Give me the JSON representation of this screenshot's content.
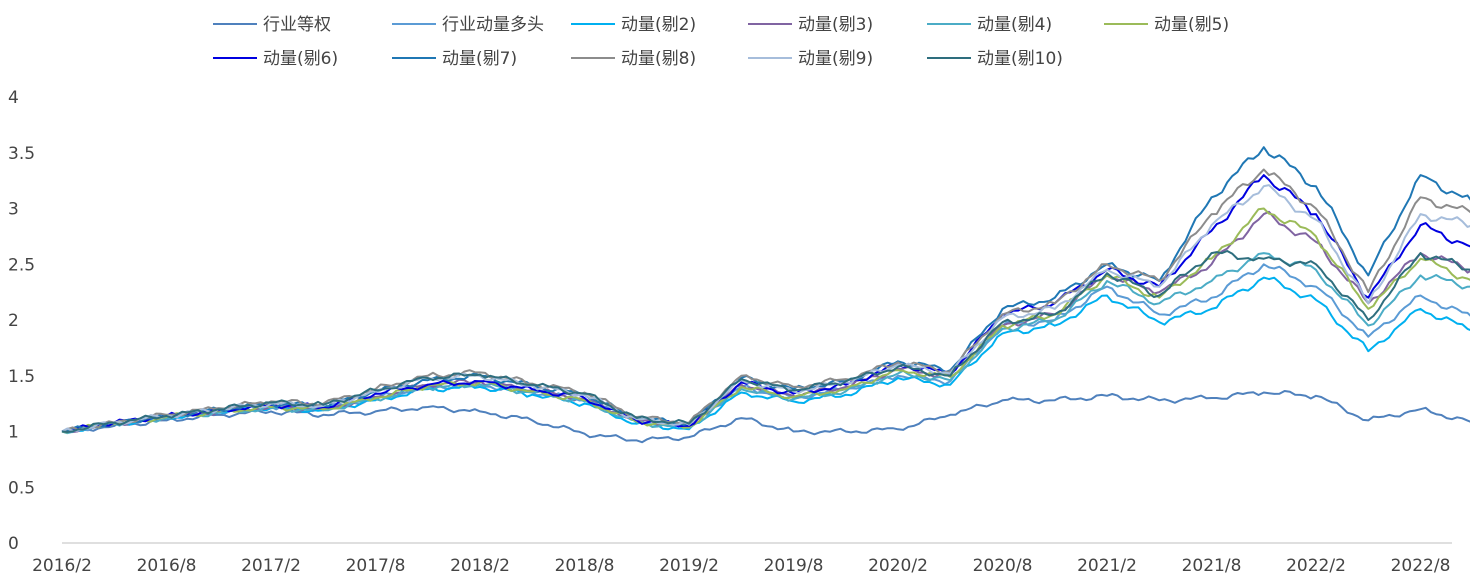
{
  "chart_data": {
    "type": "line",
    "title": "",
    "xlabel": "",
    "ylabel": "",
    "ylim": [
      0,
      4
    ],
    "yticks": [
      "0",
      "0.5",
      "1",
      "1.5",
      "2",
      "2.5",
      "3",
      "3.5",
      "4"
    ],
    "xticks": [
      "2016/2",
      "2016/8",
      "2017/2",
      "2017/8",
      "2018/2",
      "2018/8",
      "2019/2",
      "2019/8",
      "2020/2",
      "2020/8",
      "2021/2",
      "2021/8",
      "2022/2",
      "2022/8"
    ],
    "legend_position": "top",
    "grid": false,
    "x": [
      "2016/2",
      "2016/5",
      "2016/8",
      "2016/11",
      "2017/2",
      "2017/5",
      "2017/8",
      "2017/11",
      "2018/2",
      "2018/5",
      "2018/8",
      "2018/11",
      "2019/2",
      "2019/5",
      "2019/8",
      "2019/11",
      "2020/2",
      "2020/5",
      "2020/8",
      "2020/11",
      "2021/2",
      "2021/5",
      "2021/8",
      "2021/11",
      "2022/2",
      "2022/5",
      "2022/8",
      "2022/11"
    ],
    "series": [
      {
        "name": "行业等权",
        "color": "#4f81bd",
        "values": [
          1.0,
          1.05,
          1.1,
          1.15,
          1.18,
          1.15,
          1.18,
          1.22,
          1.18,
          1.1,
          0.98,
          0.92,
          0.95,
          1.12,
          1.0,
          1.0,
          1.02,
          1.15,
          1.28,
          1.28,
          1.32,
          1.28,
          1.3,
          1.35,
          1.32,
          1.1,
          1.2,
          1.08
        ]
      },
      {
        "name": "行业动量多头",
        "color": "#5b9bd5",
        "values": [
          1.0,
          1.07,
          1.13,
          1.18,
          1.22,
          1.2,
          1.3,
          1.4,
          1.42,
          1.35,
          1.28,
          1.1,
          1.05,
          1.4,
          1.3,
          1.38,
          1.5,
          1.45,
          1.95,
          2.0,
          2.3,
          2.05,
          2.2,
          2.5,
          2.3,
          1.85,
          2.22,
          2.02
        ]
      },
      {
        "name": "动量(剔2)",
        "color": "#00b0f0",
        "values": [
          1.0,
          1.07,
          1.12,
          1.17,
          1.21,
          1.19,
          1.28,
          1.38,
          1.4,
          1.33,
          1.25,
          1.07,
          1.02,
          1.35,
          1.27,
          1.33,
          1.48,
          1.42,
          1.88,
          1.95,
          2.22,
          1.98,
          2.1,
          2.38,
          2.18,
          1.72,
          2.1,
          1.9
        ]
      },
      {
        "name": "动量(剔3)",
        "color": "#8064a2",
        "values": [
          1.0,
          1.07,
          1.13,
          1.18,
          1.22,
          1.2,
          1.31,
          1.42,
          1.45,
          1.37,
          1.29,
          1.1,
          1.05,
          1.42,
          1.32,
          1.4,
          1.56,
          1.5,
          1.95,
          2.05,
          2.4,
          2.25,
          2.5,
          2.95,
          2.7,
          2.15,
          2.6,
          2.45
        ]
      },
      {
        "name": "动量(剔4)",
        "color": "#4bacc6",
        "values": [
          1.0,
          1.07,
          1.12,
          1.17,
          1.21,
          1.19,
          1.29,
          1.39,
          1.42,
          1.35,
          1.27,
          1.08,
          1.03,
          1.38,
          1.29,
          1.36,
          1.52,
          1.46,
          1.92,
          2.0,
          2.35,
          2.15,
          2.35,
          2.6,
          2.45,
          1.95,
          2.4,
          2.3
        ]
      },
      {
        "name": "动量(剔5)",
        "color": "#9bbb59",
        "values": [
          1.0,
          1.07,
          1.13,
          1.18,
          1.22,
          1.2,
          1.3,
          1.41,
          1.44,
          1.36,
          1.28,
          1.09,
          1.04,
          1.4,
          1.31,
          1.38,
          1.55,
          1.49,
          1.95,
          2.05,
          2.4,
          2.2,
          2.55,
          3.0,
          2.75,
          2.1,
          2.55,
          2.35
        ]
      },
      {
        "name": "动量(剔6)",
        "color": "#0000e0",
        "values": [
          1.0,
          1.08,
          1.14,
          1.19,
          1.24,
          1.22,
          1.34,
          1.42,
          1.45,
          1.38,
          1.3,
          1.1,
          1.05,
          1.44,
          1.34,
          1.42,
          1.6,
          1.52,
          2.05,
          2.15,
          2.45,
          2.3,
          2.8,
          3.3,
          2.95,
          2.2,
          2.85,
          2.65
        ]
      },
      {
        "name": "动量(剔7)",
        "color": "#1f77b4",
        "values": [
          1.0,
          1.08,
          1.14,
          1.2,
          1.25,
          1.23,
          1.36,
          1.46,
          1.5,
          1.41,
          1.33,
          1.12,
          1.07,
          1.48,
          1.38,
          1.45,
          1.63,
          1.55,
          2.1,
          2.2,
          2.5,
          2.35,
          3.1,
          3.55,
          3.2,
          2.4,
          3.3,
          3.05
        ]
      },
      {
        "name": "动量(剔8)",
        "color": "#8c8c8c",
        "values": [
          1.0,
          1.08,
          1.15,
          1.21,
          1.27,
          1.25,
          1.38,
          1.5,
          1.53,
          1.43,
          1.35,
          1.13,
          1.08,
          1.5,
          1.4,
          1.47,
          1.62,
          1.54,
          2.05,
          2.15,
          2.5,
          2.35,
          2.95,
          3.35,
          3.0,
          2.25,
          3.1,
          2.95
        ]
      },
      {
        "name": "动量(剔9)",
        "color": "#a6bddb",
        "values": [
          1.0,
          1.08,
          1.14,
          1.2,
          1.25,
          1.23,
          1.36,
          1.48,
          1.5,
          1.41,
          1.33,
          1.11,
          1.06,
          1.46,
          1.36,
          1.44,
          1.6,
          1.52,
          2.02,
          2.1,
          2.45,
          2.3,
          2.85,
          3.2,
          2.9,
          2.15,
          2.95,
          2.85
        ]
      },
      {
        "name": "动量(剔10)",
        "color": "#2e6e7e",
        "values": [
          1.0,
          1.08,
          1.14,
          1.2,
          1.26,
          1.24,
          1.37,
          1.48,
          1.51,
          1.42,
          1.34,
          1.12,
          1.07,
          1.47,
          1.37,
          1.45,
          1.58,
          1.5,
          1.98,
          2.05,
          2.42,
          2.22,
          2.6,
          2.55,
          2.5,
          2.0,
          2.6,
          2.45
        ]
      }
    ]
  }
}
